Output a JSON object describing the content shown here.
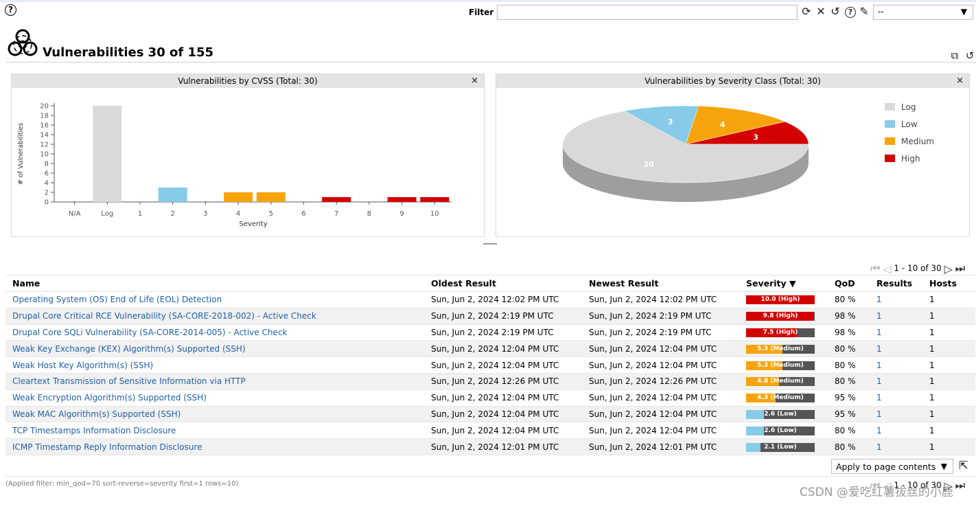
{
  "toolbar": {
    "filter_label": "Filter",
    "filter_value": "",
    "filter_select_value": "--",
    "icons": [
      "refresh-icon",
      "clear-icon",
      "reset-icon",
      "help-icon",
      "edit-icon"
    ]
  },
  "page": {
    "title": "Vulnerabilities 30 of 155",
    "icon": "biohazard-icon"
  },
  "charts": {
    "cvss_title": "Vulnerabilities by CVSS (Total: 30)",
    "severity_title": "Vulnerabilities by Severity Class (Total: 30)",
    "close_label": "×"
  },
  "colors": {
    "log": "#d9d9d9",
    "low": "#87cbe8",
    "medium": "#f7a40c",
    "high": "#d20000",
    "link": "#1f5fa8"
  },
  "chart_data": [
    {
      "type": "bar",
      "title": "Vulnerabilities by CVSS (Total: 30)",
      "xlabel": "Severity",
      "ylabel": "# of Vulnerabilities",
      "categories": [
        "N/A",
        "Log",
        "1",
        "2",
        "3",
        "4",
        "5",
        "6",
        "7",
        "8",
        "9",
        "10"
      ],
      "values": [
        0,
        20,
        0,
        3,
        0,
        2,
        2,
        0,
        1,
        0,
        1,
        1
      ],
      "bar_classes": [
        "na",
        "log",
        "low",
        "low",
        "low",
        "medium",
        "medium",
        "medium",
        "high",
        "high",
        "high",
        "high"
      ],
      "yticks": [
        0,
        2,
        4,
        6,
        8,
        10,
        12,
        14,
        16,
        18,
        20
      ],
      "ylim": [
        0,
        20
      ],
      "grid": false
    },
    {
      "type": "pie",
      "title": "Vulnerabilities by Severity Class (Total: 30)",
      "slices": [
        {
          "label": "Log",
          "value": 20,
          "class": "log"
        },
        {
          "label": "Low",
          "value": 3,
          "class": "low"
        },
        {
          "label": "Medium",
          "value": 4,
          "class": "medium"
        },
        {
          "label": "High",
          "value": 3,
          "class": "high"
        }
      ],
      "legend_position": "right"
    }
  ],
  "pagination": {
    "text": "1 - 10 of 30"
  },
  "table": {
    "columns": [
      "Name",
      "Oldest Result",
      "Newest Result",
      "Severity ▼",
      "QoD",
      "Results",
      "Hosts"
    ],
    "rows": [
      {
        "name": "Operating System (OS) End of Life (EOL) Detection",
        "oldest": "Sun, Jun 2, 2024 12:02 PM UTC",
        "newest": "Sun, Jun 2, 2024 12:02 PM UTC",
        "severity": "10.0 (High)",
        "score": 10.0,
        "class": "high",
        "qod": "80 %",
        "results": "1",
        "hosts": "1"
      },
      {
        "name": "Drupal Core Critical RCE Vulnerability (SA-CORE-2018-002) - Active Check",
        "oldest": "Sun, Jun 2, 2024 2:19 PM UTC",
        "newest": "Sun, Jun 2, 2024 2:19 PM UTC",
        "severity": "9.8 (High)",
        "score": 9.8,
        "class": "high",
        "qod": "98 %",
        "results": "1",
        "hosts": "1"
      },
      {
        "name": "Drupal Core SQLi Vulnerability (SA-CORE-2014-005) - Active Check",
        "oldest": "Sun, Jun 2, 2024 2:19 PM UTC",
        "newest": "Sun, Jun 2, 2024 2:19 PM UTC",
        "severity": "7.5 (High)",
        "score": 7.5,
        "class": "high",
        "qod": "98 %",
        "results": "1",
        "hosts": "1"
      },
      {
        "name": "Weak Key Exchange (KEX) Algorithm(s) Supported (SSH)",
        "oldest": "Sun, Jun 2, 2024 12:04 PM UTC",
        "newest": "Sun, Jun 2, 2024 12:04 PM UTC",
        "severity": "5.3 (Medium)",
        "score": 5.3,
        "class": "medium",
        "qod": "80 %",
        "results": "1",
        "hosts": "1"
      },
      {
        "name": "Weak Host Key Algorithm(s) (SSH)",
        "oldest": "Sun, Jun 2, 2024 12:04 PM UTC",
        "newest": "Sun, Jun 2, 2024 12:04 PM UTC",
        "severity": "5.3 (Medium)",
        "score": 5.3,
        "class": "medium",
        "qod": "80 %",
        "results": "1",
        "hosts": "1"
      },
      {
        "name": "Cleartext Transmission of Sensitive Information via HTTP",
        "oldest": "Sun, Jun 2, 2024 12:26 PM UTC",
        "newest": "Sun, Jun 2, 2024 12:26 PM UTC",
        "severity": "4.8 (Medium)",
        "score": 4.8,
        "class": "medium",
        "qod": "80 %",
        "results": "1",
        "hosts": "1"
      },
      {
        "name": "Weak Encryption Algorithm(s) Supported (SSH)",
        "oldest": "Sun, Jun 2, 2024 12:04 PM UTC",
        "newest": "Sun, Jun 2, 2024 12:04 PM UTC",
        "severity": "4.3 (Medium)",
        "score": 4.3,
        "class": "medium",
        "qod": "95 %",
        "results": "1",
        "hosts": "1"
      },
      {
        "name": "Weak MAC Algorithm(s) Supported (SSH)",
        "oldest": "Sun, Jun 2, 2024 12:04 PM UTC",
        "newest": "Sun, Jun 2, 2024 12:04 PM UTC",
        "severity": "2.6 (Low)",
        "score": 2.6,
        "class": "low",
        "qod": "95 %",
        "results": "1",
        "hosts": "1"
      },
      {
        "name": "TCP Timestamps Information Disclosure",
        "oldest": "Sun, Jun 2, 2024 12:04 PM UTC",
        "newest": "Sun, Jun 2, 2024 12:04 PM UTC",
        "severity": "2.6 (Low)",
        "score": 2.6,
        "class": "low",
        "qod": "80 %",
        "results": "1",
        "hosts": "1"
      },
      {
        "name": "ICMP Timestamp Reply Information Disclosure",
        "oldest": "Sun, Jun 2, 2024 12:01 PM UTC",
        "newest": "Sun, Jun 2, 2024 12:01 PM UTC",
        "severity": "2.1 (Low)",
        "score": 2.1,
        "class": "low",
        "qod": "80 %",
        "results": "1",
        "hosts": "1"
      }
    ]
  },
  "footer": {
    "apply_select": "Apply to page contents",
    "applied_filter": "(Applied filter: min_qod=70 sort-reverse=severity first=1 rows=10)",
    "watermark": "CSDN @爱吃红薯拔丝的小鹿"
  }
}
